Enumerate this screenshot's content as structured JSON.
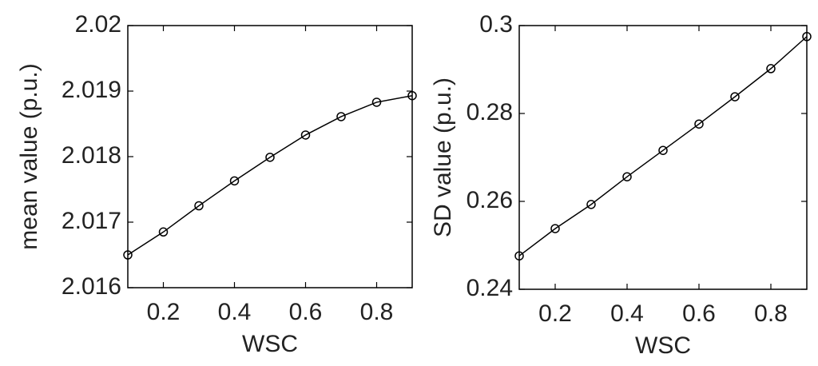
{
  "chart_data": [
    {
      "type": "line",
      "x": [
        0.1,
        0.2,
        0.3,
        0.4,
        0.5,
        0.6,
        0.7,
        0.8,
        0.9
      ],
      "values": [
        2.0165,
        2.01685,
        2.01725,
        2.01763,
        2.01799,
        2.01833,
        2.01861,
        2.01883,
        2.01893
      ],
      "color": "#000000",
      "marker": "o",
      "xlabel": "WSC",
      "ylabel": "mean value (p.u.)",
      "xlim": [
        0.1,
        0.9
      ],
      "xticks": [
        0.2,
        0.4,
        0.6,
        0.8
      ],
      "ylim": [
        2.016,
        2.02
      ],
      "yticks": [
        2.016,
        2.017,
        2.018,
        2.019,
        2.02
      ]
    },
    {
      "type": "line",
      "x": [
        0.1,
        0.2,
        0.3,
        0.4,
        0.5,
        0.6,
        0.7,
        0.8,
        0.9
      ],
      "values": [
        0.2476,
        0.2538,
        0.2593,
        0.2656,
        0.2716,
        0.2776,
        0.2838,
        0.2902,
        0.2975
      ],
      "color": "#000000",
      "marker": "o",
      "xlabel": "WSC",
      "ylabel": "SD value (p.u.)",
      "xlim": [
        0.1,
        0.9
      ],
      "xticks": [
        0.2,
        0.4,
        0.6,
        0.8
      ],
      "ylim": [
        0.24,
        0.3
      ],
      "yticks": [
        0.24,
        0.26,
        0.28,
        0.3
      ]
    }
  ]
}
